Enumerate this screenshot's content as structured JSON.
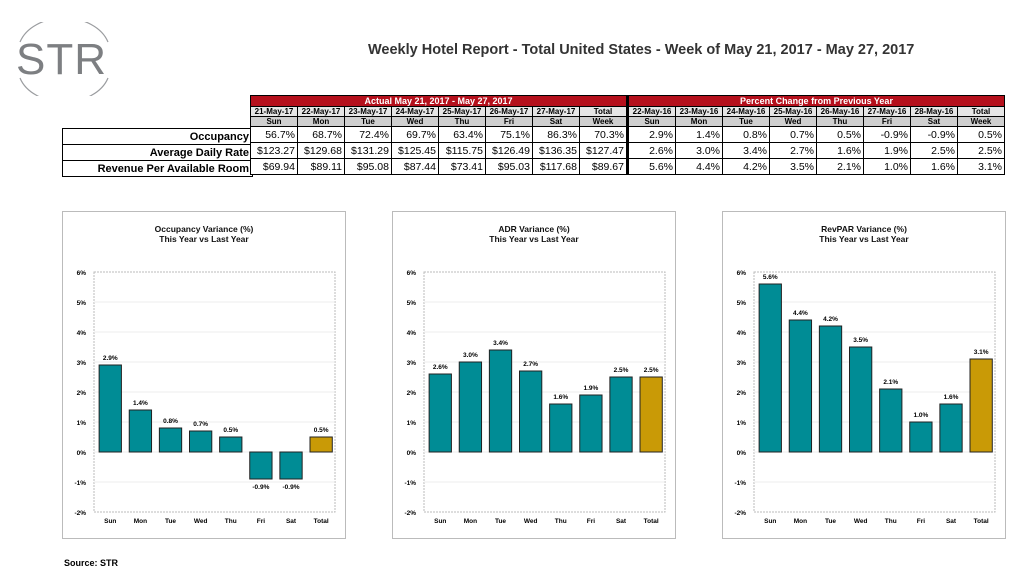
{
  "logo": {
    "text": "STR"
  },
  "title": "Weekly Hotel Report - Total United States - Week of May 21, 2017 - May 27, 2017",
  "table": {
    "actual_header": "Actual May 21, 2017 - May 27, 2017",
    "pct_header": "Percent Change from Previous Year",
    "actual_dates": [
      "21-May-17",
      "22-May-17",
      "23-May-17",
      "24-May-17",
      "25-May-17",
      "26-May-17",
      "27-May-17",
      "Total"
    ],
    "pct_dates": [
      "22-May-16",
      "23-May-16",
      "24-May-16",
      "25-May-16",
      "26-May-16",
      "27-May-16",
      "28-May-16",
      "Total"
    ],
    "days": [
      "Sun",
      "Mon",
      "Tue",
      "Wed",
      "Thu",
      "Fri",
      "Sat",
      "Week"
    ],
    "rows": [
      {
        "label": "Occupancy",
        "actual": [
          "56.7%",
          "68.7%",
          "72.4%",
          "69.7%",
          "63.4%",
          "75.1%",
          "86.3%",
          "70.3%"
        ],
        "pct": [
          "2.9%",
          "1.4%",
          "0.8%",
          "0.7%",
          "0.5%",
          "-0.9%",
          "-0.9%",
          "0.5%"
        ]
      },
      {
        "label": "Average Daily Rate",
        "actual": [
          "$123.27",
          "$129.68",
          "$131.29",
          "$125.45",
          "$115.75",
          "$126.49",
          "$136.35",
          "$127.47"
        ],
        "pct": [
          "2.6%",
          "3.0%",
          "3.4%",
          "2.7%",
          "1.6%",
          "1.9%",
          "2.5%",
          "2.5%"
        ]
      },
      {
        "label": "Revenue Per Available Room",
        "actual": [
          "$69.94",
          "$89.11",
          "$95.08",
          "$87.44",
          "$73.41",
          "$95.03",
          "$117.68",
          "$89.67"
        ],
        "pct": [
          "5.6%",
          "4.4%",
          "4.2%",
          "3.5%",
          "2.1%",
          "1.0%",
          "1.6%",
          "3.1%"
        ]
      }
    ]
  },
  "colors": {
    "bar": "#008c95",
    "total_bar": "#c99a06",
    "header_band": "#b5101c"
  },
  "chart_data": [
    {
      "type": "bar",
      "title": "Occupancy Variance (%)",
      "subtitle": "This Year vs Last Year",
      "categories": [
        "Sun",
        "Mon",
        "Tue",
        "Wed",
        "Thu",
        "Fri",
        "Sat",
        "Total"
      ],
      "values": [
        2.9,
        1.4,
        0.8,
        0.7,
        0.5,
        -0.9,
        -0.9,
        0.5
      ],
      "labels": [
        "2.9%",
        "1.4%",
        "0.8%",
        "0.7%",
        "0.5%",
        "-0.9%",
        "-0.9%",
        "0.5%"
      ],
      "ylim": [
        -2,
        6
      ],
      "yticks": [
        "-2%",
        "-1%",
        "0%",
        "1%",
        "2%",
        "3%",
        "4%",
        "5%",
        "6%"
      ],
      "grid": true
    },
    {
      "type": "bar",
      "title": "ADR Variance (%)",
      "subtitle": "This Year vs Last Year",
      "categories": [
        "Sun",
        "Mon",
        "Tue",
        "Wed",
        "Thu",
        "Fri",
        "Sat",
        "Total"
      ],
      "values": [
        2.6,
        3.0,
        3.4,
        2.7,
        1.6,
        1.9,
        2.5,
        2.5
      ],
      "labels": [
        "2.6%",
        "3.0%",
        "3.4%",
        "2.7%",
        "1.6%",
        "1.9%",
        "2.5%",
        "2.5%"
      ],
      "ylim": [
        -2,
        6
      ],
      "yticks": [
        "-2%",
        "-1%",
        "0%",
        "1%",
        "2%",
        "3%",
        "4%",
        "5%",
        "6%"
      ],
      "grid": true
    },
    {
      "type": "bar",
      "title": "RevPAR Variance (%)",
      "subtitle": "This Year vs Last Year",
      "categories": [
        "Sun",
        "Mon",
        "Tue",
        "Wed",
        "Thu",
        "Fri",
        "Sat",
        "Total"
      ],
      "values": [
        5.6,
        4.4,
        4.2,
        3.5,
        2.1,
        1.0,
        1.6,
        3.1
      ],
      "labels": [
        "5.6%",
        "4.4%",
        "4.2%",
        "3.5%",
        "2.1%",
        "1.0%",
        "1.6%",
        "3.1%"
      ],
      "ylim": [
        -2,
        6
      ],
      "yticks": [
        "-2%",
        "-1%",
        "0%",
        "1%",
        "2%",
        "3%",
        "4%",
        "5%",
        "6%"
      ],
      "grid": true
    }
  ],
  "source": "Source: STR"
}
